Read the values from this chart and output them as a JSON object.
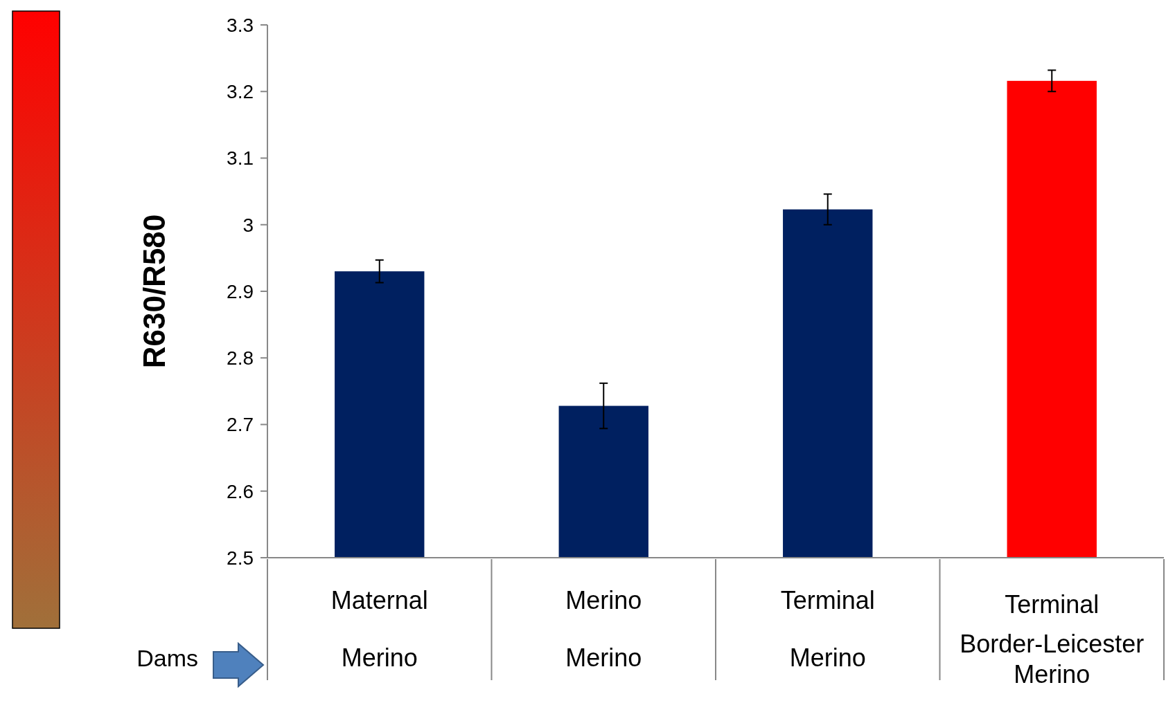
{
  "chart_data": {
    "type": "bar",
    "ylabel": "R630/R580",
    "categories": [
      "Maternal\nMerino",
      "Merino\nMerino",
      "Terminal\nMerino",
      "Terminal\nBorder-Leicester\nMerino"
    ],
    "values": [
      2.93,
      2.728,
      3.023,
      3.216
    ],
    "colors": [
      "#002060",
      "#002060",
      "#002060",
      "#ff0000"
    ],
    "errors": [
      0.017,
      0.034,
      0.023,
      0.016
    ],
    "ylim": [
      2.5,
      3.3
    ],
    "yticks": [
      2.5,
      2.6,
      2.7,
      2.8,
      2.9,
      3,
      3.1,
      3.2,
      3.3
    ],
    "grid": false,
    "annotations": [
      "Dams"
    ]
  }
}
